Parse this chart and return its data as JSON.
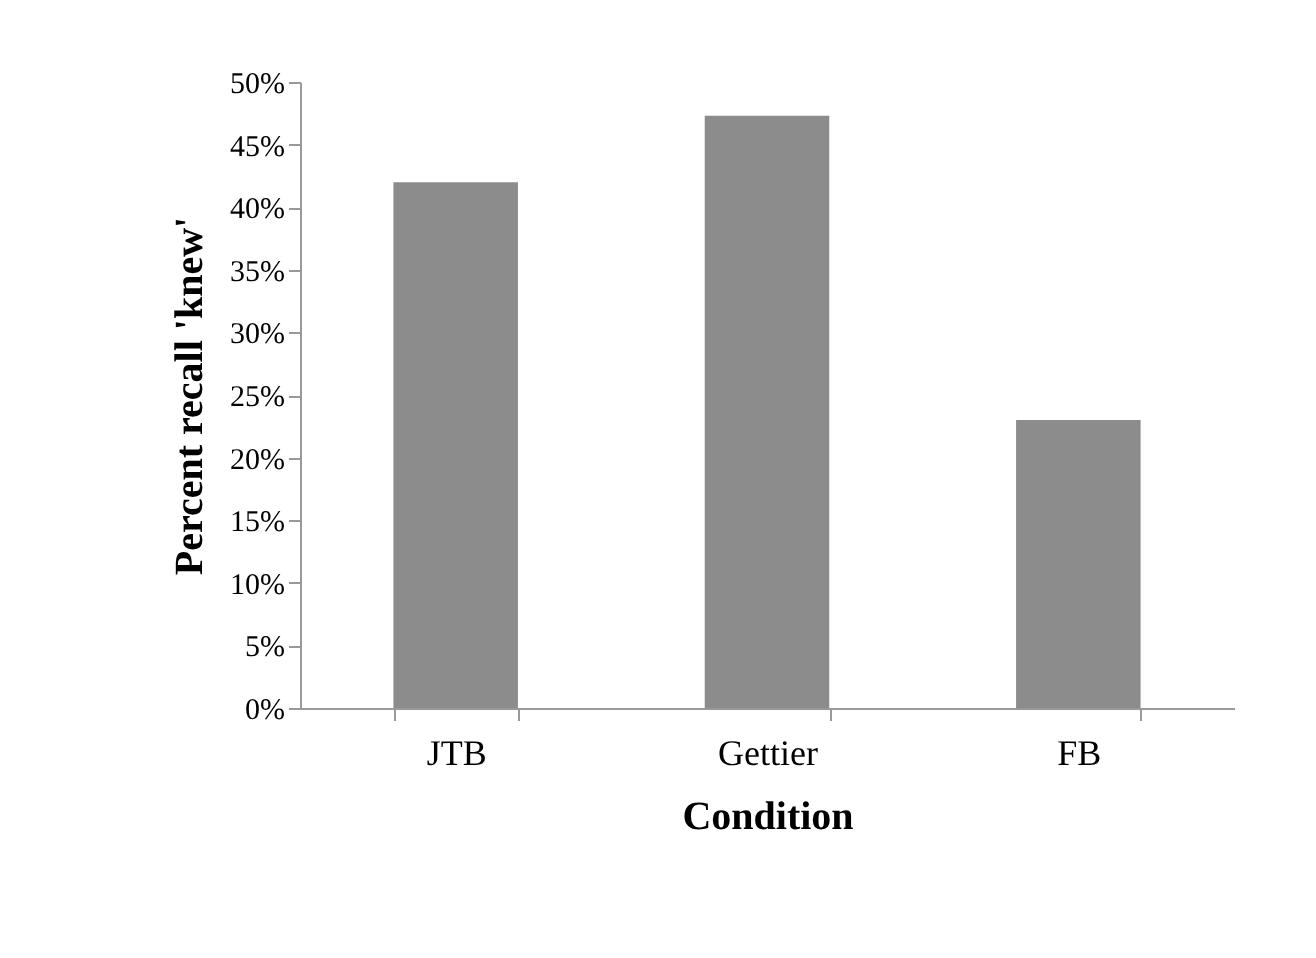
{
  "chart_data": {
    "type": "bar",
    "xlabel": "Condition",
    "ylabel": "Percent recall 'knew'",
    "categories": [
      "JTB",
      "Gettier",
      "FB"
    ],
    "values": [
      42,
      47.3,
      23
    ],
    "color": "#8c8c8c",
    "ylim": [
      0,
      50
    ],
    "yticks": [
      {
        "value": 0,
        "label": "0%"
      },
      {
        "value": 5,
        "label": "5%"
      },
      {
        "value": 10,
        "label": "10%"
      },
      {
        "value": 15,
        "label": "15%"
      },
      {
        "value": 20,
        "label": "20%"
      },
      {
        "value": 25,
        "label": "25%"
      },
      {
        "value": 30,
        "label": "30%"
      },
      {
        "value": 35,
        "label": "35%"
      },
      {
        "value": 40,
        "label": "40%"
      },
      {
        "value": 45,
        "label": "45%"
      },
      {
        "value": 50,
        "label": "50%"
      }
    ],
    "grid": false
  }
}
